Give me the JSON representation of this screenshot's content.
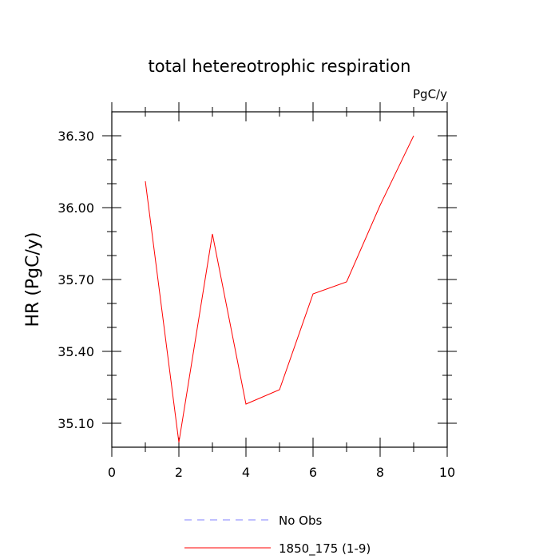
{
  "chart_data": {
    "type": "line",
    "title": "total hetereotrophic respiration",
    "units_label": "PgC/y",
    "xlabel": "",
    "ylabel": "HR  (PgC/y)",
    "xlim": [
      0,
      10
    ],
    "ylim": [
      35.0,
      36.4
    ],
    "x_ticks": [
      0,
      2,
      4,
      6,
      8,
      10
    ],
    "x_tick_labels": [
      "0",
      "2",
      "4",
      "6",
      "8",
      "10"
    ],
    "y_ticks": [
      35.1,
      35.4,
      35.7,
      36.0,
      36.3
    ],
    "y_tick_labels": [
      "35.10",
      "35.40",
      "35.70",
      "36.00",
      "36.30"
    ],
    "grid": false,
    "legend_position": "bottom-center",
    "series": [
      {
        "name": "No Obs",
        "color": "#8080ff",
        "style": "dashed",
        "x": [],
        "y": []
      },
      {
        "name": "1850_175 (1-9)",
        "color": "#ff0000",
        "style": "solid",
        "x": [
          1,
          2,
          3,
          4,
          5,
          6,
          7,
          8,
          9
        ],
        "y": [
          36.11,
          35.02,
          35.89,
          35.18,
          35.24,
          35.64,
          35.69,
          36.01,
          36.3
        ]
      }
    ]
  }
}
